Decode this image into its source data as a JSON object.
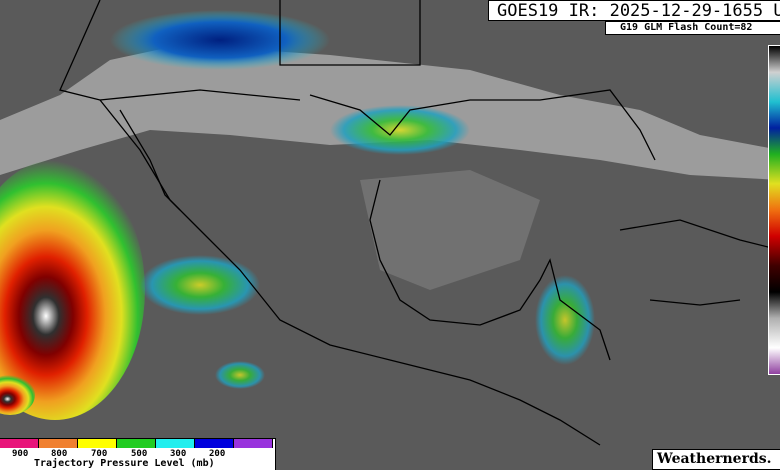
{
  "header": {
    "title": "GOES19 IR: 2025-12-29-1655 U",
    "flash_count": "G19 GLM Flash Count=82"
  },
  "legend": {
    "title": "Trajectory Pressure Level (mb)",
    "tick_labels": [
      "900",
      "800",
      "700",
      "500",
      "300",
      "200"
    ],
    "colors": [
      "#e8157a",
      "#f08030",
      "#ffff00",
      "#22cc22",
      "#22eeee",
      "#0000dd",
      "#9933dd"
    ]
  },
  "credit": "Weathernerds.",
  "colorbar": {
    "colors": [
      "#000000",
      "#d0d0d0",
      "#20c0d0",
      "#0020a0",
      "#20b020",
      "#e0e020",
      "#f07010",
      "#d00000",
      "#400000",
      "#000000",
      "#b0b0b0",
      "#ffffff",
      "#9040a0"
    ]
  }
}
